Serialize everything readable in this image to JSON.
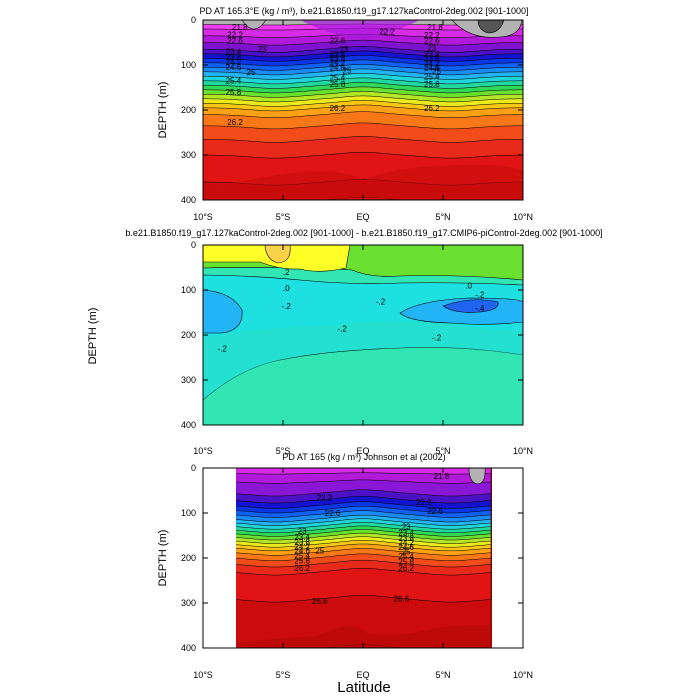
{
  "figure": {
    "x_axis_label": "Latitude"
  },
  "chart_data": [
    {
      "type": "heatmap",
      "title": "PD AT 165.3°E (kg / m³), b.e21.B1850.f19_g17.127kaControl-2deg.002 [901-1000]",
      "xlabel": "",
      "ylabel": "DEPTH (m)",
      "xlim": [
        -10,
        10
      ],
      "ylim": [
        400,
        0
      ],
      "x_ticks": [
        "10°S",
        "5°S",
        "EQ",
        "5°N",
        "10°N"
      ],
      "y_ticks": [
        "0",
        "100",
        "200",
        "300",
        "400"
      ],
      "depth_bands": [
        {
          "depth": 10,
          "color": "#b3b3b3"
        },
        {
          "depth": 20,
          "color": "#f53cf5"
        },
        {
          "depth": 35,
          "color": "#d62ce6"
        },
        {
          "depth": 50,
          "color": "#b01ad8"
        },
        {
          "depth": 65,
          "color": "#7d12cf"
        },
        {
          "depth": 75,
          "color": "#4a12c4"
        },
        {
          "depth": 85,
          "color": "#1414d0"
        },
        {
          "depth": 95,
          "color": "#0a36e6"
        },
        {
          "depth": 105,
          "color": "#1060f2"
        },
        {
          "depth": 115,
          "color": "#1a8af5"
        },
        {
          "depth": 125,
          "color": "#20b4f2"
        },
        {
          "depth": 135,
          "color": "#20d4d8"
        },
        {
          "depth": 145,
          "color": "#20d8a0"
        },
        {
          "depth": 155,
          "color": "#30d85a"
        },
        {
          "depth": 165,
          "color": "#6ae030"
        },
        {
          "depth": 175,
          "color": "#b4e628"
        },
        {
          "depth": 185,
          "color": "#eaea1c"
        },
        {
          "depth": 195,
          "color": "#fac814"
        },
        {
          "depth": 210,
          "color": "#fca014"
        },
        {
          "depth": 235,
          "color": "#f87818"
        },
        {
          "depth": 265,
          "color": "#f24c1a"
        },
        {
          "depth": 300,
          "color": "#e82a1a"
        },
        {
          "depth": 360,
          "color": "#e01414"
        },
        {
          "depth": 400,
          "color": "#cc0c0c"
        }
      ],
      "contour_labels": [
        {
          "lat": -7.7,
          "depth": 15,
          "text": "21.8"
        },
        {
          "lat": 1.5,
          "depth": 26,
          "text": "22.2"
        },
        {
          "lat": 4.5,
          "depth": 15,
          "text": "21.8"
        },
        {
          "lat": -8,
          "depth": 32,
          "text": "22.2"
        },
        {
          "lat": -8,
          "depth": 45,
          "text": "22.6"
        },
        {
          "lat": -1.6,
          "depth": 45,
          "text": "22.6"
        },
        {
          "lat": 4.3,
          "depth": 33,
          "text": "22.2"
        },
        {
          "lat": 4.3,
          "depth": 45,
          "text": "22.6"
        },
        {
          "lat": -8.1,
          "depth": 70,
          "text": "23.4"
        },
        {
          "lat": -6.3,
          "depth": 64,
          "text": "23"
        },
        {
          "lat": -1.6,
          "depth": 75,
          "text": "23.4"
        },
        {
          "lat": -1.2,
          "depth": 64,
          "text": "23"
        },
        {
          "lat": 4.3,
          "depth": 62,
          "text": "23"
        },
        {
          "lat": 4.3,
          "depth": 75,
          "text": "23.4"
        },
        {
          "lat": -8.1,
          "depth": 82,
          "text": "23.8"
        },
        {
          "lat": -8.1,
          "depth": 93,
          "text": "24.2"
        },
        {
          "lat": -8.1,
          "depth": 104,
          "text": "24.6"
        },
        {
          "lat": -1.6,
          "depth": 84,
          "text": "23.8"
        },
        {
          "lat": -1.6,
          "depth": 94,
          "text": "24.2"
        },
        {
          "lat": -1.6,
          "depth": 105,
          "text": "24.6"
        },
        {
          "lat": 4.3,
          "depth": 86,
          "text": "23.8"
        },
        {
          "lat": 4.3,
          "depth": 97,
          "text": "24.2"
        },
        {
          "lat": 4.3,
          "depth": 105,
          "text": "24.6"
        },
        {
          "lat": -7,
          "depth": 115,
          "text": "25"
        },
        {
          "lat": -1,
          "depth": 112,
          "text": "25"
        },
        {
          "lat": 4.6,
          "depth": 113,
          "text": "25"
        },
        {
          "lat": -8.1,
          "depth": 134,
          "text": "25.4"
        },
        {
          "lat": -1.6,
          "depth": 128,
          "text": "25.4"
        },
        {
          "lat": 4.3,
          "depth": 126,
          "text": "25.4"
        },
        {
          "lat": -8.1,
          "depth": 160,
          "text": "25.8"
        },
        {
          "lat": -1.6,
          "depth": 142,
          "text": "25.8"
        },
        {
          "lat": 4.3,
          "depth": 142,
          "text": "25.8"
        },
        {
          "lat": -8,
          "depth": 227,
          "text": "26.2"
        },
        {
          "lat": -1.6,
          "depth": 195,
          "text": "26.2"
        },
        {
          "lat": 4.3,
          "depth": 195,
          "text": "26.2"
        }
      ]
    },
    {
      "type": "heatmap",
      "title": "b.e21.B1850.f19_g17.127kaControl-2deg.002 [901-1000] - b.e21.B1850.f19_g17.CMIP6-piControl-2deg.002 [901-1000]",
      "xlabel": "",
      "ylabel": "DEPTH (m)",
      "xlim": [
        -10,
        10
      ],
      "ylim": [
        400,
        0
      ],
      "x_ticks": [
        "10°S",
        "5°S",
        "EQ",
        "5°N",
        "10°N"
      ],
      "y_ticks": [
        "0",
        "100",
        "200",
        "300",
        "400"
      ],
      "regions": [
        {
          "name": "near-zero",
          "color": "#6ae030"
        },
        {
          "name": "upper-left-positive",
          "color": "#ffff28"
        },
        {
          "name": "positive-core",
          "color": "#fad24a"
        },
        {
          "name": "negative-band",
          "color": "#1ee0e0"
        },
        {
          "name": "weak-negative",
          "color": "#28e0c0"
        },
        {
          "name": "deep-water",
          "color": "#32e6b4"
        },
        {
          "name": "left-negative-core",
          "color": "#22b4f4"
        },
        {
          "name": "right-negative-core",
          "color": "#22b4f4"
        },
        {
          "name": "min-core",
          "color": "#1f64f0"
        }
      ],
      "contour_labels": [
        {
          "lat": -4.8,
          "depth": 60,
          "text": ".2"
        },
        {
          "lat": -4.8,
          "depth": 95,
          "text": ".0"
        },
        {
          "lat": 6.6,
          "depth": 90,
          "text": ".0"
        },
        {
          "lat": 7.3,
          "depth": 110,
          "text": "-.2"
        },
        {
          "lat": -4.8,
          "depth": 135,
          "text": "-.2"
        },
        {
          "lat": 1.1,
          "depth": 125,
          "text": "-.2"
        },
        {
          "lat": 7.3,
          "depth": 140,
          "text": "-.4"
        },
        {
          "lat": -1.3,
          "depth": 185,
          "text": "-.2"
        },
        {
          "lat": -8.8,
          "depth": 230,
          "text": "-.2"
        },
        {
          "lat": 4.6,
          "depth": 205,
          "text": "-.2"
        }
      ]
    },
    {
      "type": "heatmap",
      "title": "PD AT 165 (kg / m³) Johnson et al (2002)",
      "xlabel": "Latitude",
      "ylabel": "DEPTH (m)",
      "xlim": [
        -10,
        10
      ],
      "ylim": [
        400,
        0
      ],
      "data_extent": [
        -8,
        8
      ],
      "x_ticks": [
        "10°S",
        "5°S",
        "EQ",
        "5°N",
        "10°N"
      ],
      "y_ticks": [
        "0",
        "100",
        "200",
        "300",
        "400"
      ],
      "depth_bands": [
        {
          "depth": 12,
          "color": "#d62ce6"
        },
        {
          "depth": 30,
          "color": "#b01ad8"
        },
        {
          "depth": 55,
          "color": "#8a16d6"
        },
        {
          "depth": 70,
          "color": "#4a12c4"
        },
        {
          "depth": 82,
          "color": "#1414d0"
        },
        {
          "depth": 92,
          "color": "#0a36e6"
        },
        {
          "depth": 102,
          "color": "#1060f2"
        },
        {
          "depth": 112,
          "color": "#1a8af5"
        },
        {
          "depth": 120,
          "color": "#20b4f2"
        },
        {
          "depth": 128,
          "color": "#20d4d8"
        },
        {
          "depth": 136,
          "color": "#20d8a0"
        },
        {
          "depth": 144,
          "color": "#30d85a"
        },
        {
          "depth": 152,
          "color": "#6ae030"
        },
        {
          "depth": 160,
          "color": "#b4e628"
        },
        {
          "depth": 168,
          "color": "#eaea1c"
        },
        {
          "depth": 176,
          "color": "#fac814"
        },
        {
          "depth": 186,
          "color": "#fca014"
        },
        {
          "depth": 198,
          "color": "#f87818"
        },
        {
          "depth": 212,
          "color": "#f24c1a"
        },
        {
          "depth": 230,
          "color": "#e82a1a"
        },
        {
          "depth": 290,
          "color": "#e01414"
        },
        {
          "depth": 400,
          "color": "#cc0c0c"
        }
      ],
      "contour_labels": [
        {
          "lat": 4.9,
          "depth": 18,
          "text": "21.8"
        },
        {
          "lat": -2.4,
          "depth": 65,
          "text": "22.2"
        },
        {
          "lat": 3.8,
          "depth": 75,
          "text": "22.2"
        },
        {
          "lat": -1.9,
          "depth": 100,
          "text": "22.6"
        },
        {
          "lat": 4.5,
          "depth": 95,
          "text": "22.6"
        },
        {
          "lat": -3.8,
          "depth": 140,
          "text": "23"
        },
        {
          "lat": 2.7,
          "depth": 130,
          "text": "23"
        },
        {
          "lat": -3.8,
          "depth": 153,
          "text": "23.4"
        },
        {
          "lat": 2.7,
          "depth": 143,
          "text": "23.4"
        },
        {
          "lat": -3.8,
          "depth": 164,
          "text": "23.8"
        },
        {
          "lat": 2.7,
          "depth": 155,
          "text": "23.8"
        },
        {
          "lat": -3.8,
          "depth": 174,
          "text": "24.2"
        },
        {
          "lat": 2.7,
          "depth": 165,
          "text": "24.2"
        },
        {
          "lat": -3.8,
          "depth": 183,
          "text": "24.6"
        },
        {
          "lat": -2.7,
          "depth": 183,
          "text": "25"
        },
        {
          "lat": 2.7,
          "depth": 176,
          "text": "24.6"
        },
        {
          "lat": -3.8,
          "depth": 194,
          "text": "25.4"
        },
        {
          "lat": 2.7,
          "depth": 186,
          "text": "25"
        },
        {
          "lat": 2.7,
          "depth": 196,
          "text": "25.4"
        },
        {
          "lat": -3.8,
          "depth": 206,
          "text": "25.8"
        },
        {
          "lat": 2.7,
          "depth": 208,
          "text": "25.8"
        },
        {
          "lat": -3.8,
          "depth": 222,
          "text": "26.2"
        },
        {
          "lat": 2.7,
          "depth": 222,
          "text": "26.2"
        },
        {
          "lat": -2.7,
          "depth": 295,
          "text": "26.6"
        },
        {
          "lat": 2.4,
          "depth": 290,
          "text": "26.6"
        }
      ]
    }
  ]
}
